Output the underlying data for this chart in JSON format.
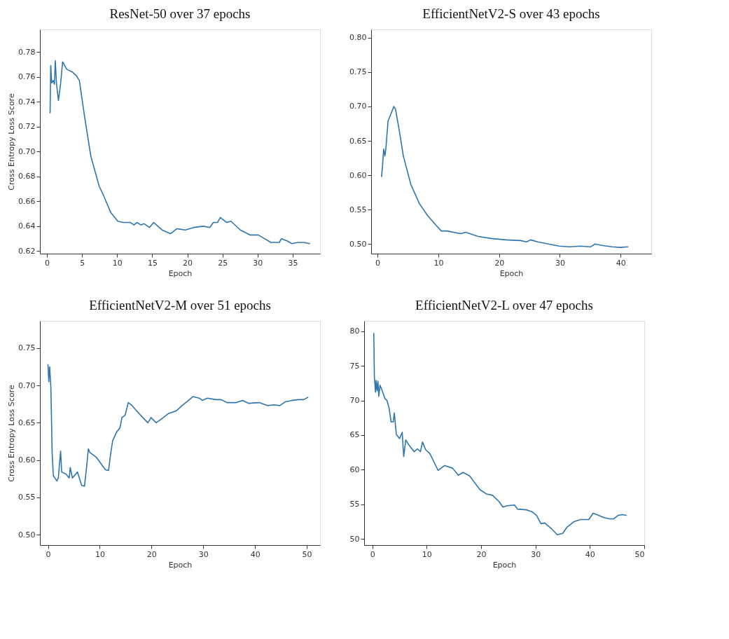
{
  "chart_data": [
    {
      "type": "line",
      "title": "ResNet-50 over 37 epochs",
      "xlabel": "Epoch",
      "ylabel": "Cross Entropy Loss Score",
      "xlim": [
        -1.0,
        38.9
      ],
      "ylim": [
        0.618,
        0.798
      ],
      "xticks": [
        0,
        5,
        10,
        15,
        20,
        25,
        30,
        35
      ],
      "yticks": [
        0.62,
        0.64,
        0.66,
        0.68,
        {
          "value": 0.7,
          "label": "0.70"
        },
        0.72,
        0.74,
        0.76,
        0.78
      ],
      "grid": false,
      "line_style": "solid",
      "marker": "none",
      "series": [
        {
          "color": "#2f75ad",
          "x": [
            0.45,
            0.54,
            0.68,
            0.89,
            1.07,
            1.19,
            1.37,
            1.64,
            1.94,
            2.23,
            2.83,
            3.57,
            4.17,
            4.62,
            5.36,
            6.26,
            7.45,
            8.04,
            9.09,
            10.1,
            10.87,
            11.9,
            12.4,
            12.8,
            13.4,
            13.85,
            14.6,
            15.2,
            16.4,
            17.6,
            18.5,
            19.7,
            20.9,
            22.3,
            23.2,
            23.7,
            24.3,
            24.7,
            25.6,
            26.2,
            27.55,
            28.9,
            30.1,
            31.0,
            31.9,
            33.1,
            33.4,
            34.3,
            34.9,
            35.75,
            36.6,
            37.4
          ],
          "values": [
            0.731,
            0.769,
            0.755,
            0.757,
            0.754,
            0.773,
            0.754,
            0.741,
            0.754,
            0.772,
            0.766,
            0.764,
            0.761,
            0.757,
            0.728,
            0.696,
            0.672,
            0.665,
            0.651,
            0.644,
            0.643,
            0.643,
            0.641,
            0.643,
            0.641,
            0.642,
            0.639,
            0.643,
            0.637,
            0.634,
            0.638,
            0.637,
            0.639,
            0.64,
            0.639,
            0.643,
            0.643,
            0.647,
            0.643,
            0.644,
            0.637,
            0.633,
            0.633,
            0.63,
            0.627,
            0.627,
            0.63,
            0.628,
            0.626,
            0.627,
            0.627,
            0.626
          ]
        }
      ]
    },
    {
      "type": "line",
      "title": "EfficientNetV2-S over 43 epochs",
      "xlabel": "Epoch",
      "xlim": [
        -1.05,
        45.05
      ],
      "ylim": [
        0.486,
        0.812
      ],
      "xticks": [
        0,
        10,
        20,
        30,
        40
      ],
      "yticks": [
        {
          "value": 0.5,
          "label": "0.50"
        },
        0.55,
        {
          "value": 0.6,
          "label": "0.60"
        },
        0.65,
        {
          "value": 0.7,
          "label": "0.70"
        },
        0.75,
        {
          "value": 0.8,
          "label": "0.80"
        }
      ],
      "grid": false,
      "line_style": "solid",
      "marker": "none",
      "series": [
        {
          "color": "#2f75ad",
          "x": [
            0.66,
            0.8,
            1.01,
            1.22,
            1.36,
            1.74,
            2.16,
            2.68,
            2.96,
            3.56,
            4.25,
            5.47,
            6.87,
            8.26,
            9.66,
            10.5,
            11.4,
            13.1,
            13.7,
            14.5,
            16.6,
            18.7,
            21.2,
            23.6,
            24.5,
            25.2,
            26.4,
            28.1,
            29.9,
            31.6,
            33.4,
            35.1,
            35.8,
            36.9,
            38.6,
            40.0,
            41.2
          ],
          "values": [
            0.598,
            0.611,
            0.638,
            0.628,
            0.638,
            0.679,
            0.688,
            0.7,
            0.696,
            0.666,
            0.628,
            0.587,
            0.559,
            0.541,
            0.527,
            0.519,
            0.519,
            0.516,
            0.515,
            0.517,
            0.511,
            0.508,
            0.506,
            0.505,
            0.503,
            0.506,
            0.503,
            0.5,
            0.497,
            0.496,
            0.497,
            0.496,
            0.5,
            0.498,
            0.496,
            0.495,
            0.496
          ]
        }
      ]
    },
    {
      "type": "line",
      "title": "EfficientNetV2-M over 51 epochs",
      "xlabel": "Epoch",
      "ylabel": "Cross Entropy Loss Score",
      "xlim": [
        -1.56,
        52.56
      ],
      "ylim": [
        0.486,
        0.7865
      ],
      "xticks": [
        0,
        10,
        20,
        30,
        40,
        50
      ],
      "yticks": [
        {
          "value": 0.5,
          "label": "0.50"
        },
        0.55,
        {
          "value": 0.6,
          "label": "0.60"
        },
        0.65,
        {
          "value": 0.7,
          "label": "0.70"
        },
        0.75
      ],
      "grid": false,
      "line_style": "solid",
      "marker": "none",
      "series": [
        {
          "color": "#2f75ad",
          "x": [
            0.0,
            0.16,
            0.32,
            0.56,
            0.8,
            1.04,
            1.72,
            2.0,
            2.2,
            2.44,
            2.64,
            3.5,
            4.1,
            4.3,
            4.7,
            5.7,
            6.5,
            7.05,
            7.45,
            7.8,
            8.1,
            9.3,
            11.1,
            11.7,
            12.1,
            12.5,
            13.3,
            13.9,
            14.3,
            14.9,
            15.5,
            16.1,
            17.1,
            18.3,
            19.3,
            19.9,
            20.9,
            21.9,
            23.2,
            24.8,
            25.9,
            26.8,
            28.0,
            29.2,
            29.8,
            30.8,
            32.4,
            33.4,
            34.6,
            36.4,
            37.6,
            38.8,
            40.8,
            42.4,
            43.6,
            44.8,
            45.8,
            47.2,
            48.4,
            49.4,
            50.2
          ],
          "values": [
            0.728,
            0.705,
            0.725,
            0.697,
            0.61,
            0.579,
            0.572,
            0.576,
            0.593,
            0.612,
            0.584,
            0.581,
            0.576,
            0.59,
            0.576,
            0.584,
            0.566,
            0.565,
            0.59,
            0.615,
            0.61,
            0.604,
            0.587,
            0.586,
            0.608,
            0.626,
            0.638,
            0.643,
            0.657,
            0.66,
            0.677,
            0.674,
            0.666,
            0.657,
            0.65,
            0.657,
            0.65,
            0.655,
            0.662,
            0.666,
            0.673,
            0.678,
            0.685,
            0.683,
            0.68,
            0.683,
            0.681,
            0.681,
            0.677,
            0.677,
            0.68,
            0.676,
            0.677,
            0.673,
            0.674,
            0.673,
            0.678,
            0.68,
            0.681,
            0.681,
            0.684
          ]
        }
      ]
    },
    {
      "type": "line",
      "title": "EfficientNetV2-L over 47 epochs",
      "xlabel": "Epoch",
      "xlim": [
        -1.5,
        50
      ],
      "ylim": [
        49.1,
        81.5
      ],
      "xticks": [
        0,
        10,
        20,
        30,
        40,
        50
      ],
      "yticks": [
        50,
        55,
        60,
        65,
        70,
        75,
        80
      ],
      "grid": false,
      "line_style": "solid",
      "marker": "none",
      "series": [
        {
          "color": "#2f75ad",
          "x": [
            0.27,
            0.38,
            0.58,
            0.69,
            0.88,
            1.04,
            1.19,
            1.42,
            1.73,
            2.31,
            2.7,
            3.08,
            3.46,
            3.85,
            4.04,
            4.42,
            5.0,
            5.5,
            5.77,
            6.15,
            6.7,
            7.7,
            8.3,
            8.85,
            9.23,
            9.8,
            10.6,
            11.35,
            12.1,
            13.3,
            14.8,
            15.8,
            16.7,
            17.9,
            18.65,
            19.8,
            20.96,
            22.1,
            23.3,
            24.0,
            24.8,
            26.15,
            26.7,
            28.3,
            29.4,
            30.2,
            31.0,
            31.7,
            32.3,
            32.9,
            34.0,
            35.0,
            35.8,
            37.1,
            38.3,
            39.8,
            40.6,
            41.3,
            42.5,
            43.65,
            44.4,
            45.2,
            46.0,
            46.7
          ],
          "values": [
            79.7,
            73.4,
            71.2,
            72.9,
            71.4,
            72.8,
            70.6,
            72.2,
            71.6,
            70.3,
            70.0,
            68.9,
            66.9,
            66.9,
            68.2,
            65.1,
            64.5,
            65.4,
            61.9,
            64.3,
            63.6,
            62.6,
            63.0,
            62.6,
            64.0,
            62.9,
            62.3,
            61.1,
            59.9,
            60.6,
            60.2,
            59.2,
            59.6,
            59.1,
            58.3,
            57.1,
            56.5,
            56.3,
            55.4,
            54.6,
            54.8,
            54.9,
            54.3,
            54.2,
            53.9,
            53.4,
            52.2,
            52.3,
            51.9,
            51.5,
            50.6,
            50.8,
            51.7,
            52.5,
            52.8,
            52.8,
            53.7,
            53.5,
            53.1,
            52.9,
            52.9,
            53.4,
            53.5,
            53.4
          ]
        }
      ]
    }
  ]
}
